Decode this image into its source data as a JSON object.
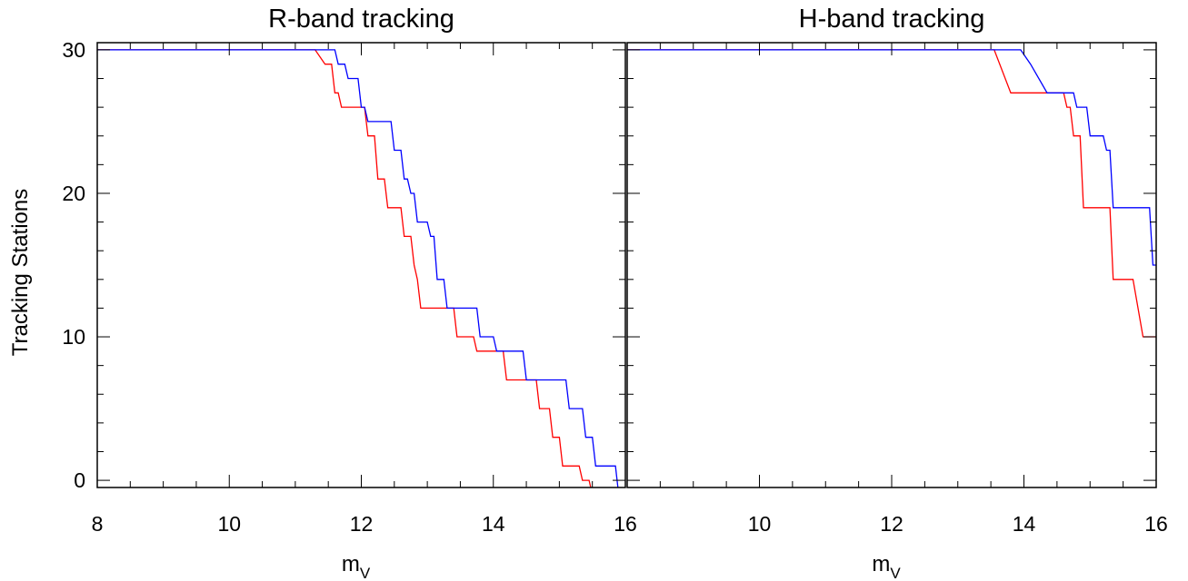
{
  "chart_data": [
    {
      "type": "line",
      "title": "R-band tracking",
      "xlabel": "m",
      "xlabel_sub": "V",
      "ylabel": "Tracking Stations",
      "xlim": [
        8,
        16
      ],
      "ylim": [
        -0.5,
        30.5
      ],
      "xticks": [
        "8",
        "10",
        "12",
        "14",
        "16"
      ],
      "yticks": [
        "0",
        "10",
        "20",
        "30"
      ],
      "series": [
        {
          "color": "#ff0000",
          "x": [
            8,
            11.3,
            11.45,
            11.55,
            11.6,
            11.65,
            11.7,
            12.05,
            12.1,
            12.2,
            12.25,
            12.35,
            12.4,
            12.6,
            12.65,
            12.75,
            12.8,
            12.85,
            12.9,
            13.4,
            13.45,
            13.7,
            13.75,
            14.15,
            14.2,
            14.65,
            14.7,
            14.85,
            14.9,
            15.0,
            15.05,
            15.3,
            15.35,
            15.45,
            15.5
          ],
          "y": [
            30,
            30,
            29,
            29,
            27,
            27,
            26,
            26,
            24,
            24,
            21,
            21,
            19,
            19,
            17,
            17,
            15,
            14,
            12,
            12,
            10,
            10,
            9,
            9,
            7,
            7,
            5,
            5,
            3,
            3,
            1,
            1,
            0,
            0,
            -1
          ]
        },
        {
          "color": "#0000ff",
          "x": [
            8,
            11.6,
            11.65,
            11.75,
            11.8,
            11.95,
            12.0,
            12.05,
            12.1,
            12.15,
            12.2,
            12.45,
            12.5,
            12.6,
            12.65,
            12.7,
            12.75,
            12.8,
            12.85,
            13.0,
            13.05,
            13.1,
            13.15,
            13.25,
            13.3,
            13.75,
            13.8,
            14.0,
            14.05,
            14.45,
            14.5,
            15.1,
            15.15,
            15.35,
            15.4,
            15.5,
            15.55,
            15.85,
            15.9
          ],
          "y": [
            30,
            30,
            29,
            29,
            28,
            28,
            26,
            26,
            25,
            25,
            25,
            25,
            23,
            23,
            21,
            21,
            20,
            20,
            18,
            18,
            17,
            17,
            14,
            14,
            12,
            12,
            10,
            10,
            9,
            9,
            7,
            7,
            5,
            5,
            3,
            3,
            1,
            1,
            -1
          ]
        }
      ]
    },
    {
      "type": "line",
      "title": "H-band tracking",
      "xlabel": "m",
      "xlabel_sub": "V",
      "ylabel": "",
      "xlim": [
        8,
        16
      ],
      "ylim": [
        -0.5,
        30.5
      ],
      "xticks": [
        "8",
        "10",
        "12",
        "14",
        "16"
      ],
      "yticks": [
        "0",
        "10",
        "20",
        "30"
      ],
      "hide_first_xtick": true,
      "series": [
        {
          "color": "#ff0000",
          "x": [
            8,
            13.55,
            13.8,
            14.35,
            14.4,
            14.6,
            14.65,
            14.7,
            14.75,
            14.85,
            14.9,
            15.25,
            15.3,
            15.35,
            15.45,
            15.6,
            15.65,
            15.8,
            16.0
          ],
          "y": [
            30,
            30,
            27,
            27,
            27,
            27,
            26,
            26,
            24,
            24,
            19,
            19,
            19,
            14,
            14,
            14,
            14,
            10,
            10
          ],
          "step_fix": true
        },
        {
          "color": "#0000ff",
          "x": [
            8,
            13.95,
            14.1,
            14.35,
            14.4,
            14.75,
            14.8,
            14.95,
            15.0,
            15.2,
            15.25,
            15.3,
            15.35,
            15.6,
            15.65,
            15.9,
            15.95,
            16.0
          ],
          "y": [
            30,
            30,
            29,
            27,
            27,
            27,
            26,
            26,
            24,
            24,
            23,
            23,
            19,
            19,
            19,
            19,
            15,
            15
          ]
        }
      ]
    }
  ]
}
